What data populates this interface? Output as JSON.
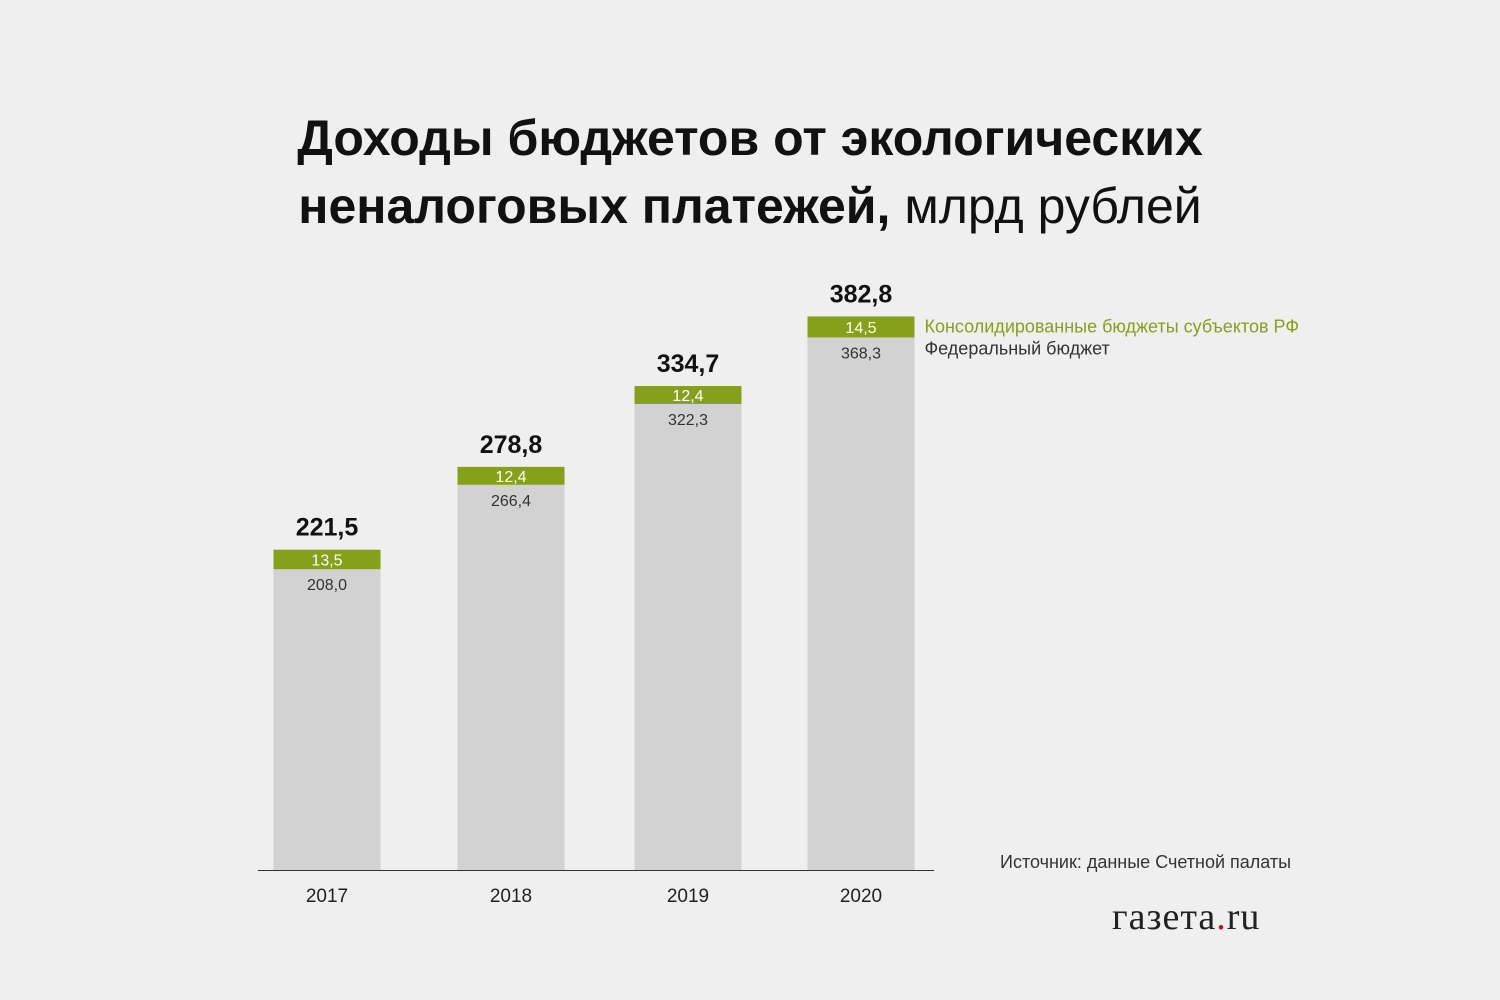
{
  "header": {
    "title_line1": "Доходы бюджетов от экологических",
    "title_line2_bold": "неналоговых платежей,",
    "title_line2_light": " млрд рублей"
  },
  "chart_data": {
    "type": "bar",
    "stacked": true,
    "categories": [
      "2017",
      "2018",
      "2019",
      "2020"
    ],
    "series": [
      {
        "name": "Федеральный бюджет",
        "values": [
          208.0,
          266.4,
          322.3,
          368.3
        ],
        "labels": [
          "208,0",
          "266,4",
          "322,3",
          "368,3"
        ],
        "color": "#d2d2d2"
      },
      {
        "name": "Консолидированные бюджеты субъектов РФ",
        "values": [
          13.5,
          12.4,
          12.4,
          14.5
        ],
        "labels": [
          "13,5",
          "12,4",
          "12,4",
          "14,5"
        ],
        "color": "#86a01a"
      }
    ],
    "totals": [
      "221,5",
      "278,8",
      "334,7",
      "382,8"
    ],
    "legend_placement": "right",
    "grid": false,
    "ylim": [
      0,
      400
    ]
  },
  "footer": {
    "source": "Источник: данные Счетной палаты",
    "logo_main": "газета",
    "logo_dot": ".",
    "logo_tld": "ru"
  }
}
